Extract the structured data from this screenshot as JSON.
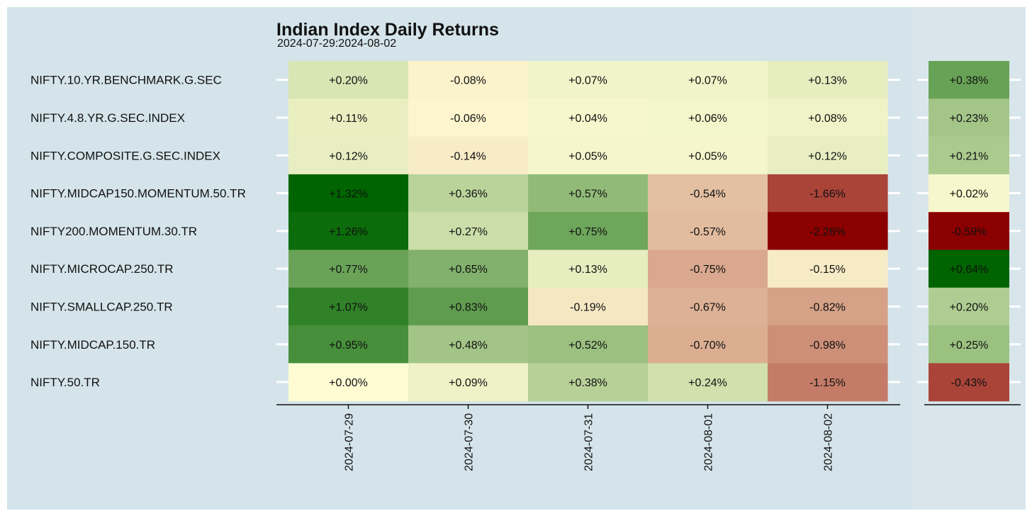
{
  "title": "Indian Index Daily Returns",
  "subtitle": "2024-07-29:2024-08-02",
  "chart_data": {
    "type": "heatmap",
    "title": "Indian Index Daily Returns",
    "subtitle": "2024-07-29:2024-08-02",
    "xlabel": "",
    "ylabel": "",
    "columns": [
      "2024-07-29",
      "2024-07-30",
      "2024-07-31",
      "2024-08-01",
      "2024-08-02"
    ],
    "rows": [
      "NIFTY.10.YR.BENCHMARK.G.SEC",
      "NIFTY.4.8.YR.G.SEC.INDEX",
      "NIFTY.COMPOSITE.G.SEC.INDEX",
      "NIFTY.MIDCAP150.MOMENTUM.50.TR",
      "NIFTY200.MOMENTUM.30.TR",
      "NIFTY.MICROCAP.250.TR",
      "NIFTY.SMALLCAP.250.TR",
      "NIFTY.MIDCAP.150.TR",
      "NIFTY.50.TR"
    ],
    "values": [
      [
        0.2,
        -0.08,
        0.07,
        0.07,
        0.13
      ],
      [
        0.11,
        -0.06,
        0.04,
        0.06,
        0.08
      ],
      [
        0.12,
        -0.14,
        0.05,
        0.05,
        0.12
      ],
      [
        1.32,
        0.36,
        0.57,
        -0.54,
        -1.66
      ],
      [
        1.26,
        0.27,
        0.75,
        -0.57,
        -2.26
      ],
      [
        0.77,
        0.65,
        0.13,
        -0.75,
        -0.15
      ],
      [
        1.07,
        0.83,
        -0.19,
        -0.67,
        -0.82
      ],
      [
        0.95,
        0.48,
        0.52,
        -0.7,
        -0.98
      ],
      [
        0.0,
        0.09,
        0.38,
        0.24,
        -1.15
      ]
    ],
    "labels": [
      [
        "+0.20%",
        "-0.08%",
        "+0.07%",
        "+0.07%",
        "+0.13%"
      ],
      [
        "+0.11%",
        "-0.06%",
        "+0.04%",
        "+0.06%",
        "+0.08%"
      ],
      [
        "+0.12%",
        "-0.14%",
        "+0.05%",
        "+0.05%",
        "+0.12%"
      ],
      [
        "+1.32%",
        "+0.36%",
        "+0.57%",
        "-0.54%",
        "-1.66%"
      ],
      [
        "+1.26%",
        "+0.27%",
        "+0.75%",
        "-0.57%",
        "-2.26%"
      ],
      [
        "+0.77%",
        "+0.65%",
        "+0.13%",
        "-0.75%",
        "-0.15%"
      ],
      [
        "+1.07%",
        "+0.83%",
        "-0.19%",
        "-0.67%",
        "-0.82%"
      ],
      [
        "+0.95%",
        "+0.48%",
        "+0.52%",
        "-0.70%",
        "-0.98%"
      ],
      [
        "+0.00%",
        "+0.09%",
        "+0.38%",
        "+0.24%",
        "-1.15%"
      ]
    ],
    "total_values": [
      0.38,
      0.23,
      0.21,
      0.02,
      -0.59,
      0.64,
      0.2,
      0.25,
      -0.43
    ],
    "total_labels": [
      "+0.38%",
      "+0.23%",
      "+0.21%",
      "+0.02%",
      "-0.59%",
      "+0.64%",
      "+0.20%",
      "+0.25%",
      "-0.43%"
    ],
    "colors": {
      "negative": "#8b0000",
      "neutral": "#fffcd4",
      "positive": "#006400",
      "background": "#d4e4ea"
    },
    "legend": "none",
    "grid": false
  }
}
